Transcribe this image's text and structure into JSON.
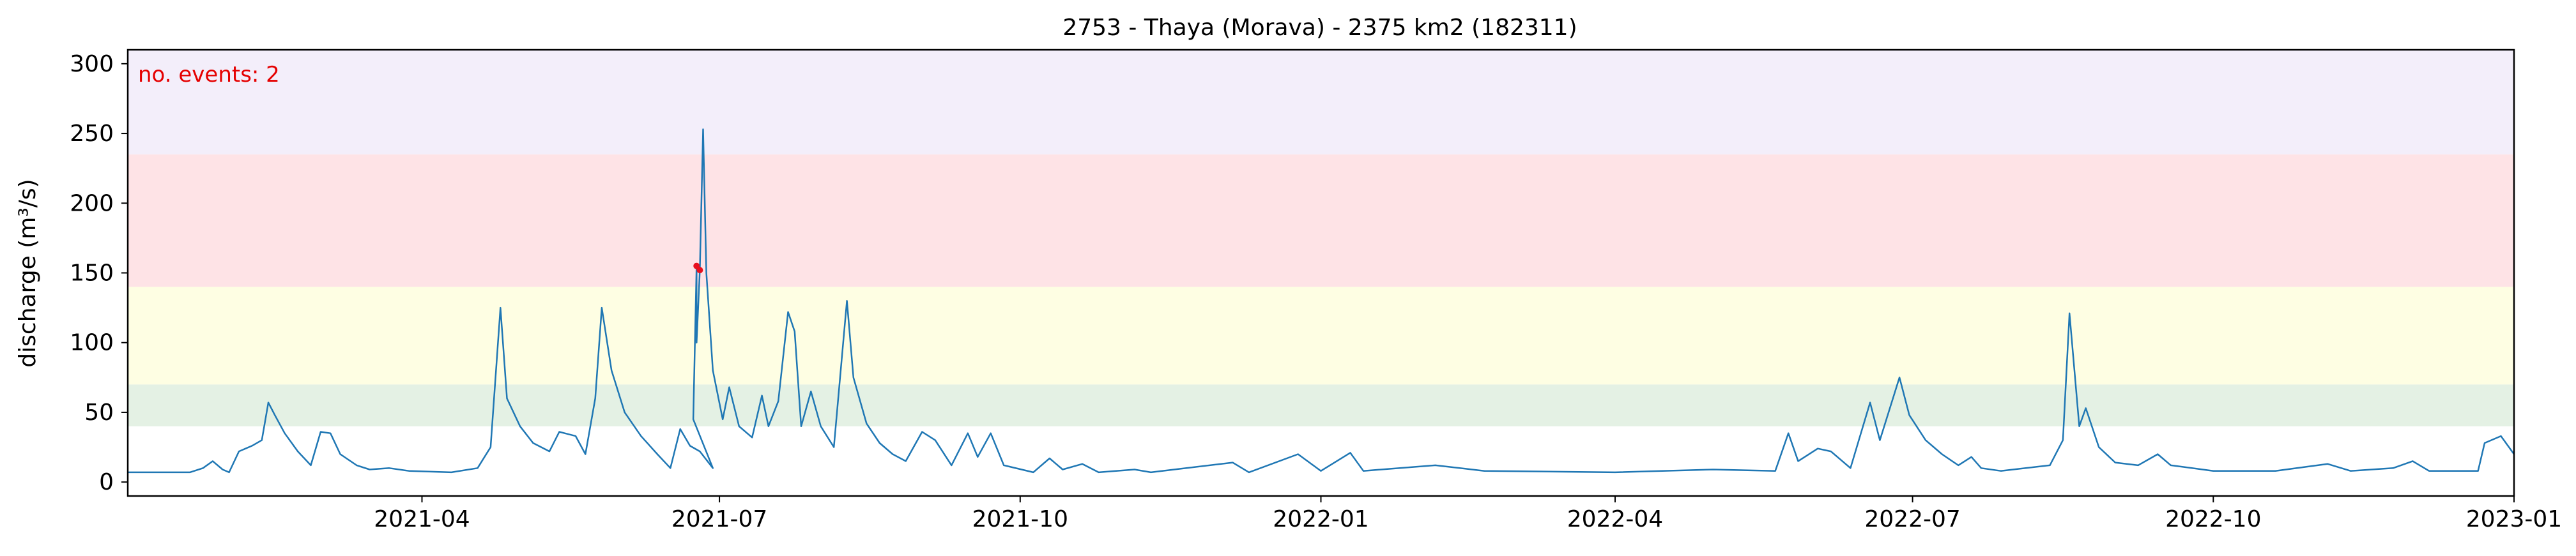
{
  "chart_data": {
    "type": "line",
    "title": "2753 - Thaya (Morava) - 2375 km2 (182311)",
    "xlabel": "",
    "ylabel": "discharge (m³/s)",
    "annotation": "no. events: 2",
    "xlim": [
      "2021-01-01",
      "2023-01-01"
    ],
    "ylim": [
      -10,
      310
    ],
    "x_ticks": [
      "2021-04",
      "2021-07",
      "2021-10",
      "2022-01",
      "2022-04",
      "2022-07",
      "2022-10",
      "2023-01"
    ],
    "y_ticks": [
      0,
      50,
      100,
      150,
      200,
      250,
      300
    ],
    "grid": false,
    "threshold_bands": [
      {
        "from": 40,
        "to": 70,
        "color": "#e4f1e4"
      },
      {
        "from": 70,
        "to": 140,
        "color": "#fefee3"
      },
      {
        "from": 140,
        "to": 235,
        "color": "#fee3e6"
      },
      {
        "from": 235,
        "to": 310,
        "color": "#f3eefa"
      }
    ],
    "series": [
      {
        "color": "#1f77b4",
        "points": [
          [
            "2021-01-01",
            7
          ],
          [
            "2021-01-20",
            7
          ],
          [
            "2021-01-24",
            10
          ],
          [
            "2021-01-27",
            15
          ],
          [
            "2021-01-30",
            9
          ],
          [
            "2021-02-01",
            7
          ],
          [
            "2021-02-04",
            22
          ],
          [
            "2021-02-08",
            26
          ],
          [
            "2021-02-11",
            30
          ],
          [
            "2021-02-13",
            57
          ],
          [
            "2021-02-15",
            48
          ],
          [
            "2021-02-18",
            35
          ],
          [
            "2021-02-22",
            22
          ],
          [
            "2021-02-26",
            12
          ],
          [
            "2021-03-01",
            36
          ],
          [
            "2021-03-04",
            35
          ],
          [
            "2021-03-07",
            20
          ],
          [
            "2021-03-12",
            12
          ],
          [
            "2021-03-16",
            9
          ],
          [
            "2021-03-22",
            10
          ],
          [
            "2021-03-28",
            8
          ],
          [
            "2021-04-10",
            7
          ],
          [
            "2021-04-18",
            10
          ],
          [
            "2021-04-22",
            25
          ],
          [
            "2021-04-25",
            125
          ],
          [
            "2021-04-27",
            60
          ],
          [
            "2021-05-01",
            40
          ],
          [
            "2021-05-05",
            28
          ],
          [
            "2021-05-10",
            22
          ],
          [
            "2021-05-13",
            36
          ],
          [
            "2021-05-18",
            33
          ],
          [
            "2021-05-21",
            20
          ],
          [
            "2021-05-24",
            60
          ],
          [
            "2021-05-26",
            125
          ],
          [
            "2021-05-29",
            80
          ],
          [
            "2021-06-02",
            50
          ],
          [
            "2021-06-07",
            33
          ],
          [
            "2021-06-12",
            20
          ],
          [
            "2021-06-16",
            10
          ],
          [
            "2021-06-19",
            38
          ],
          [
            "2021-06-22",
            26
          ],
          [
            "2021-06-25",
            22
          ],
          [
            "2021-06-29",
            10
          ],
          [
            "2021-06-23",
            45
          ],
          [
            "2021-06-24",
            155
          ],
          [
            "2021-06-24",
            100
          ],
          [
            "2021-06-25",
            152
          ],
          [
            "2021-06-26",
            253
          ],
          [
            "2021-06-27",
            150
          ],
          [
            "2021-06-29",
            80
          ],
          [
            "2021-07-02",
            45
          ],
          [
            "2021-07-04",
            68
          ],
          [
            "2021-07-07",
            40
          ],
          [
            "2021-07-11",
            32
          ],
          [
            "2021-07-14",
            62
          ],
          [
            "2021-07-16",
            40
          ],
          [
            "2021-07-19",
            58
          ],
          [
            "2021-07-22",
            122
          ],
          [
            "2021-07-24",
            108
          ],
          [
            "2021-07-26",
            40
          ],
          [
            "2021-07-29",
            65
          ],
          [
            "2021-08-01",
            40
          ],
          [
            "2021-08-05",
            25
          ],
          [
            "2021-08-09",
            130
          ],
          [
            "2021-08-11",
            75
          ],
          [
            "2021-08-15",
            42
          ],
          [
            "2021-08-19",
            28
          ],
          [
            "2021-08-23",
            20
          ],
          [
            "2021-08-27",
            15
          ],
          [
            "2021-09-01",
            36
          ],
          [
            "2021-09-05",
            30
          ],
          [
            "2021-09-10",
            12
          ],
          [
            "2021-09-15",
            35
          ],
          [
            "2021-09-18",
            18
          ],
          [
            "2021-09-22",
            35
          ],
          [
            "2021-09-26",
            12
          ],
          [
            "2021-10-05",
            7
          ],
          [
            "2021-10-10",
            17
          ],
          [
            "2021-10-14",
            9
          ],
          [
            "2021-10-20",
            13
          ],
          [
            "2021-10-25",
            7
          ],
          [
            "2021-11-05",
            9
          ],
          [
            "2021-11-10",
            7
          ],
          [
            "2021-12-05",
            14
          ],
          [
            "2021-12-10",
            7
          ],
          [
            "2021-12-25",
            20
          ],
          [
            "2022-01-01",
            8
          ],
          [
            "2022-01-10",
            21
          ],
          [
            "2022-01-14",
            8
          ],
          [
            "2022-02-05",
            12
          ],
          [
            "2022-02-20",
            8
          ],
          [
            "2022-04-01",
            7
          ],
          [
            "2022-05-01",
            9
          ],
          [
            "2022-05-20",
            8
          ],
          [
            "2022-05-24",
            35
          ],
          [
            "2022-05-27",
            15
          ],
          [
            "2022-06-02",
            24
          ],
          [
            "2022-06-06",
            22
          ],
          [
            "2022-06-12",
            10
          ],
          [
            "2022-06-18",
            57
          ],
          [
            "2022-06-21",
            30
          ],
          [
            "2022-06-27",
            75
          ],
          [
            "2022-06-30",
            48
          ],
          [
            "2022-07-05",
            30
          ],
          [
            "2022-07-10",
            20
          ],
          [
            "2022-07-15",
            12
          ],
          [
            "2022-07-19",
            18
          ],
          [
            "2022-07-22",
            10
          ],
          [
            "2022-07-28",
            8
          ],
          [
            "2022-08-12",
            12
          ],
          [
            "2022-08-16",
            30
          ],
          [
            "2022-08-18",
            121
          ],
          [
            "2022-08-21",
            40
          ],
          [
            "2022-08-23",
            53
          ],
          [
            "2022-08-27",
            25
          ],
          [
            "2022-09-01",
            14
          ],
          [
            "2022-09-08",
            12
          ],
          [
            "2022-09-14",
            20
          ],
          [
            "2022-09-18",
            12
          ],
          [
            "2022-10-01",
            8
          ],
          [
            "2022-10-20",
            8
          ],
          [
            "2022-11-05",
            13
          ],
          [
            "2022-11-12",
            8
          ],
          [
            "2022-11-25",
            10
          ],
          [
            "2022-12-01",
            15
          ],
          [
            "2022-12-06",
            8
          ],
          [
            "2022-12-21",
            8
          ],
          [
            "2022-12-23",
            28
          ],
          [
            "2022-12-28",
            33
          ],
          [
            "2023-01-01",
            20
          ]
        ]
      },
      {
        "color": "#e8101e",
        "points": [
          [
            "2021-06-24",
            155
          ],
          [
            "2021-06-25",
            152
          ]
        ]
      }
    ]
  }
}
